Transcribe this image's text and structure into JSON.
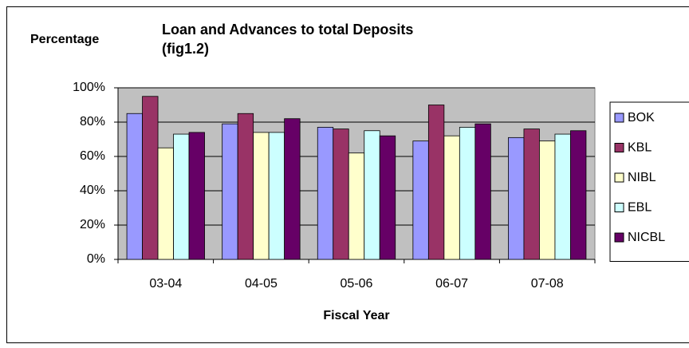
{
  "chart_data": {
    "type": "bar",
    "title": "Loan and Advances to total Deposits",
    "subtitle": "(fig1.2)",
    "y_label": "Percentage",
    "x_label": "Fiscal Year",
    "categories": [
      "03-04",
      "04-05",
      "05-06",
      "06-07",
      "07-08"
    ],
    "series": [
      {
        "name": "BOK",
        "color": "#9999ff",
        "values": [
          85,
          79,
          77,
          69,
          71
        ]
      },
      {
        "name": "KBL",
        "color": "#993366",
        "values": [
          95,
          85,
          76,
          90,
          76
        ]
      },
      {
        "name": "NIBL",
        "color": "#ffffcc",
        "values": [
          65,
          74,
          62,
          72,
          69
        ]
      },
      {
        "name": "EBL",
        "color": "#ccffff",
        "values": [
          73,
          74,
          75,
          77,
          73
        ]
      },
      {
        "name": "NICBL",
        "color": "#660066",
        "values": [
          74,
          82,
          72,
          79,
          75
        ]
      }
    ],
    "ylim": [
      0,
      100
    ],
    "yticks": [
      {
        "value": 0,
        "label": "0%"
      },
      {
        "value": 20,
        "label": "20%"
      },
      {
        "value": 40,
        "label": "40%"
      },
      {
        "value": 60,
        "label": "60%"
      },
      {
        "value": 80,
        "label": "80%"
      },
      {
        "value": 100,
        "label": "100%"
      }
    ],
    "grid": true,
    "legend": "right"
  }
}
